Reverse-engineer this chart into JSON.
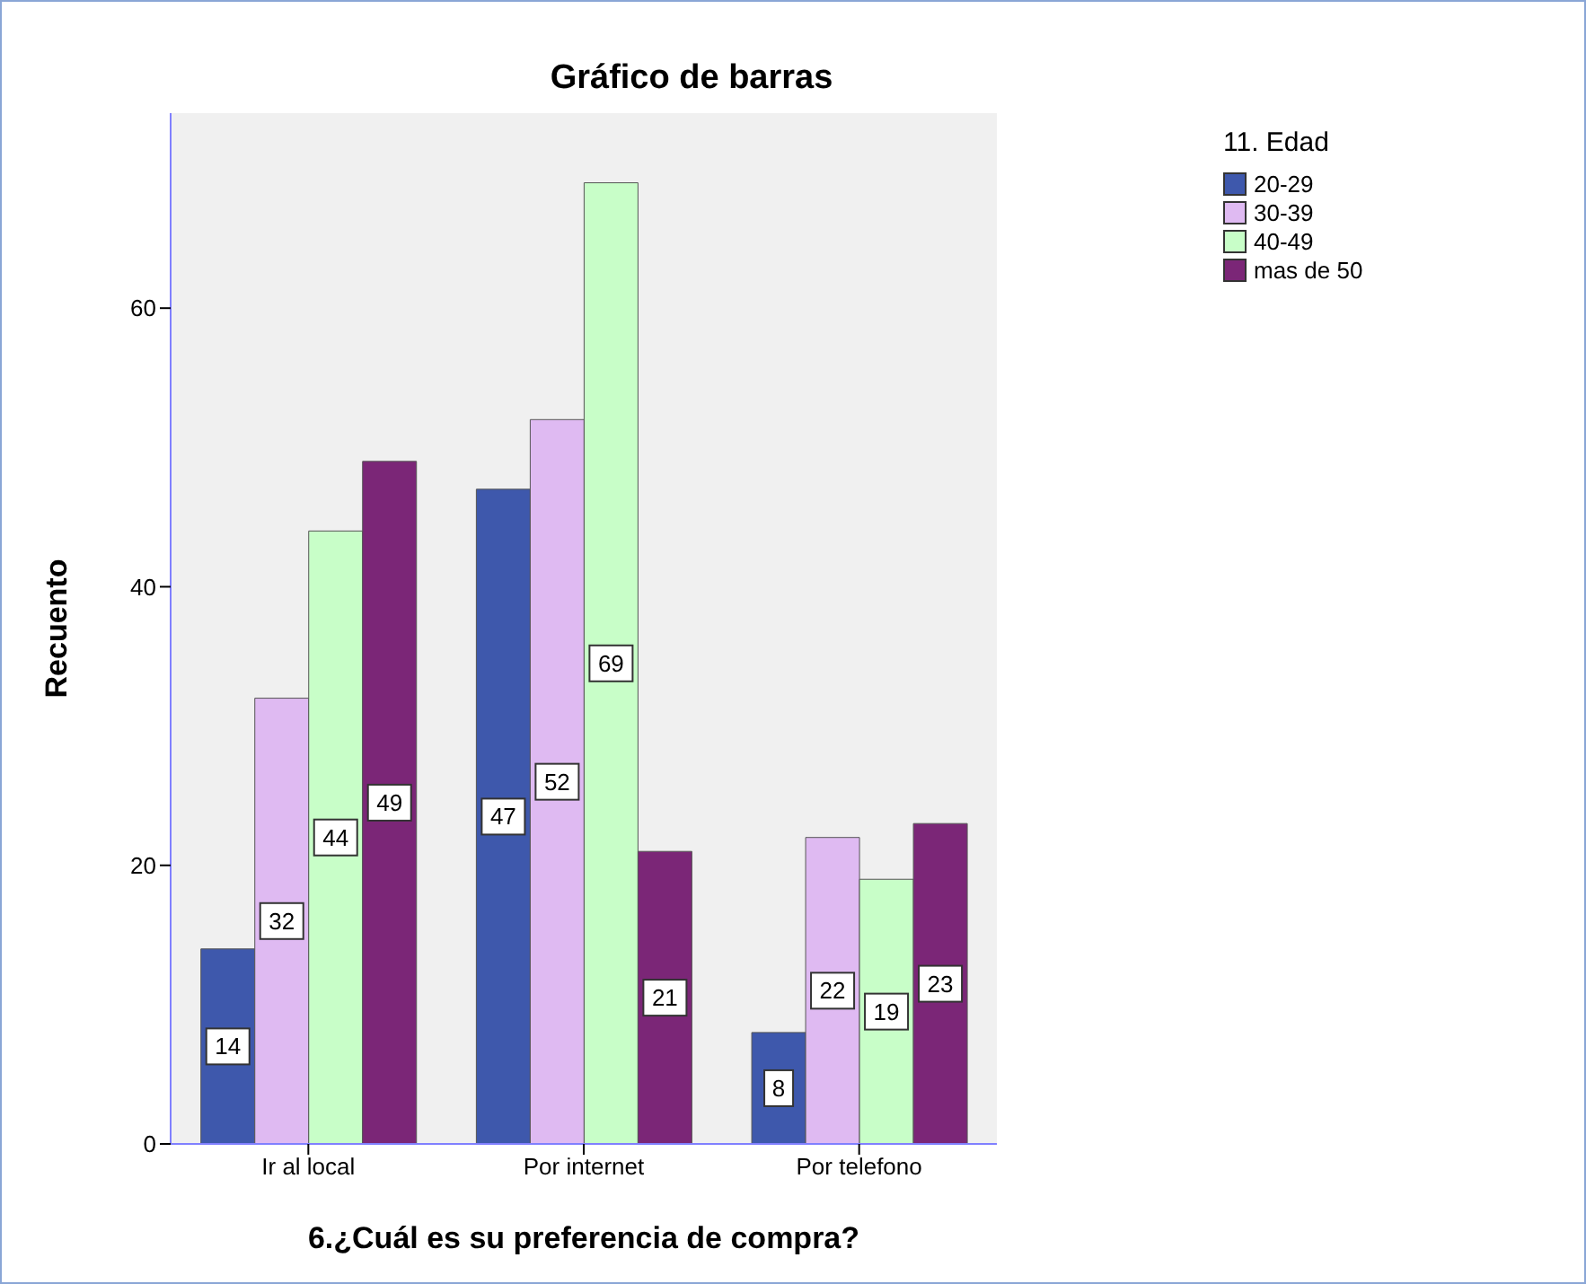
{
  "chart_data": {
    "type": "bar",
    "title": "Gráfico de barras",
    "xlabel": "6.¿Cuál es su preferencia de compra?",
    "ylabel": "Recuento",
    "legend_title": "11. Edad",
    "categories": [
      "Ir al local",
      "Por internet",
      "Por telefono"
    ],
    "series": [
      {
        "name": "20-29",
        "color": "#3e58ac",
        "values": [
          14,
          47,
          8
        ]
      },
      {
        "name": "30-39",
        "color": "#dfbaf2",
        "values": [
          32,
          52,
          22
        ]
      },
      {
        "name": "40-49",
        "color": "#c8fec8",
        "values": [
          44,
          69,
          19
        ]
      },
      {
        "name": "mas de 50",
        "color": "#7b2677",
        "values": [
          49,
          21,
          23
        ]
      }
    ],
    "ylim": [
      0,
      74
    ],
    "yticks": [
      0,
      20,
      40,
      60
    ],
    "data_labels": true,
    "legend": "top right"
  }
}
